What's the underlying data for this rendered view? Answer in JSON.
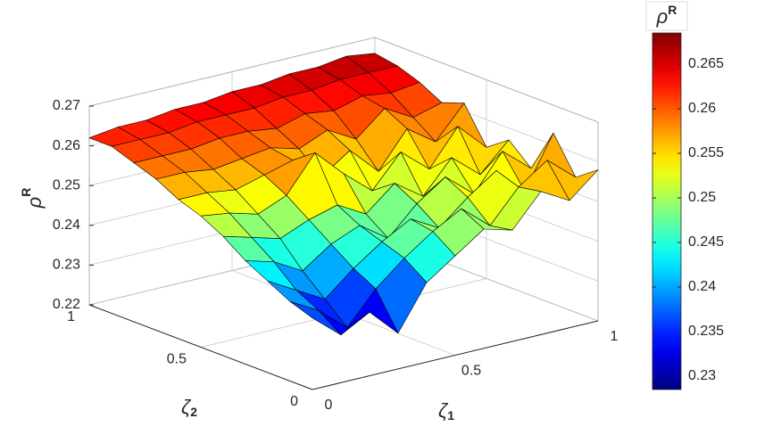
{
  "chart_data": {
    "type": "surface",
    "x": [
      0,
      0.1,
      0.2,
      0.3,
      0.4,
      0.5,
      0.6,
      0.7,
      0.8,
      0.9,
      1
    ],
    "y": [
      0,
      0.1,
      0.2,
      0.3,
      0.4,
      0.5,
      0.6,
      0.7,
      0.8,
      0.9,
      1
    ],
    "z": [
      [
        0.238,
        0.232,
        0.236,
        0.229,
        0.24,
        0.245,
        0.25,
        0.248,
        0.256,
        0.252,
        0.258
      ],
      [
        0.24,
        0.236,
        0.23,
        0.238,
        0.244,
        0.249,
        0.253,
        0.247,
        0.255,
        0.26,
        0.254
      ],
      [
        0.243,
        0.239,
        0.235,
        0.241,
        0.246,
        0.25,
        0.246,
        0.252,
        0.257,
        0.25,
        0.263
      ],
      [
        0.246,
        0.244,
        0.24,
        0.245,
        0.248,
        0.243,
        0.25,
        0.255,
        0.249,
        0.258,
        0.252
      ],
      [
        0.25,
        0.248,
        0.246,
        0.249,
        0.251,
        0.247,
        0.253,
        0.248,
        0.256,
        0.25,
        0.257
      ],
      [
        0.253,
        0.252,
        0.25,
        0.253,
        0.262,
        0.255,
        0.249,
        0.257,
        0.251,
        0.26,
        0.253
      ],
      [
        0.255,
        0.255,
        0.254,
        0.256,
        0.258,
        0.252,
        0.257,
        0.25,
        0.259,
        0.254,
        0.262
      ],
      [
        0.258,
        0.258,
        0.257,
        0.258,
        0.259,
        0.257,
        0.26,
        0.256,
        0.262,
        0.258,
        0.26
      ],
      [
        0.26,
        0.26,
        0.26,
        0.261,
        0.261,
        0.26,
        0.262,
        0.261,
        0.263,
        0.262,
        0.263
      ],
      [
        0.262,
        0.262,
        0.262,
        0.263,
        0.263,
        0.263,
        0.264,
        0.264,
        0.265,
        0.265,
        0.265
      ],
      [
        0.262,
        0.263,
        0.263,
        0.264,
        0.264,
        0.265,
        0.265,
        0.266,
        0.266,
        0.267,
        0.266
      ]
    ],
    "xlim": [
      0,
      1
    ],
    "ylim": [
      0,
      1
    ],
    "zlim": [
      0.22,
      0.27
    ],
    "xticks": [
      0,
      0.5,
      1
    ],
    "yticks": [
      0,
      0.5,
      1
    ],
    "zticks": [
      0.22,
      0.23,
      0.24,
      0.25,
      0.26,
      0.27
    ],
    "xlabel": [
      "ζ",
      "1"
    ],
    "ylabel": [
      "ζ",
      "2"
    ],
    "zlabel": [
      "ρ",
      "R"
    ],
    "grid": true,
    "colormap": "jet",
    "clim": [
      0.2285,
      0.2685
    ],
    "cticks": [
      0.23,
      0.235,
      0.24,
      0.245,
      0.25,
      0.255,
      0.26,
      0.265
    ],
    "colorbar_label": [
      "ρ",
      "R"
    ]
  }
}
